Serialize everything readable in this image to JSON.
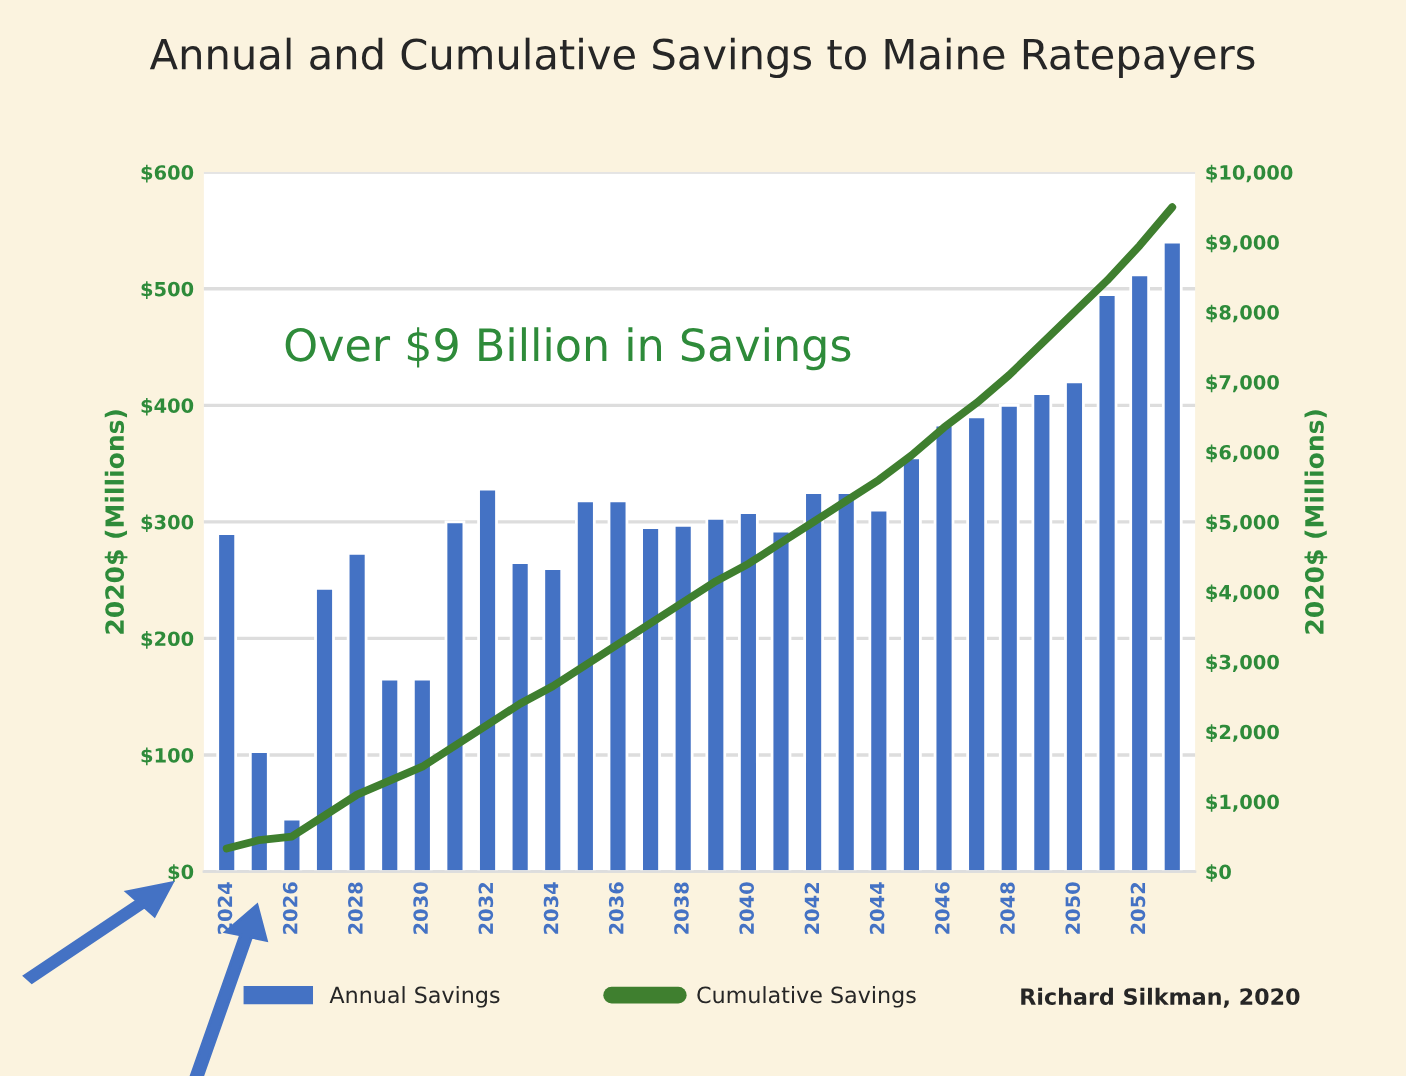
{
  "chart_data": {
    "type": "bar",
    "title": "Annual and Cumulative Savings to Maine Ratepayers",
    "categories": [
      "2024",
      null,
      "2026",
      null,
      "2028",
      null,
      "2030",
      null,
      "2032",
      null,
      "2034",
      null,
      "2036",
      null,
      "2038",
      null,
      "2040",
      null,
      "2042",
      null,
      "2044",
      null,
      "2046",
      null,
      "2048",
      null,
      "2050",
      null,
      "2052",
      null
    ],
    "series": [
      {
        "name": "Annual Savings",
        "color": "#4472c4",
        "values": [
          290,
          103,
          45,
          243,
          273,
          165,
          165,
          300,
          328,
          265,
          260,
          318,
          318,
          295,
          297,
          303,
          308,
          292,
          325,
          325,
          310,
          355,
          383,
          390,
          400,
          410,
          420,
          495,
          512,
          540
        ]
      },
      {
        "name": "Cumulative Savings",
        "type": "line",
        "axis": "y2",
        "color": "#3f7f2f",
        "values": [
          330,
          450,
          500,
          800,
          1100,
          1300,
          1500,
          1800,
          2100,
          2400,
          2650,
          2950,
          3250,
          3550,
          3850,
          4150,
          4400,
          4700,
          5000,
          5300,
          5600,
          5950,
          6350,
          6700,
          7100,
          7550,
          8000,
          8450,
          8950,
          9500
        ]
      }
    ],
    "ylabel": "2020$ (Millions)",
    "y2label": "2020$ (Millions)",
    "ylim": [
      0,
      600
    ],
    "yticks": [
      {
        "value": 0,
        "label": "$0"
      },
      {
        "value": 100,
        "label": "$100"
      },
      {
        "value": 200,
        "label": "$200"
      },
      {
        "value": 300,
        "label": "$300"
      },
      {
        "value": 400,
        "label": "$400"
      },
      {
        "value": 500,
        "label": "$500"
      },
      {
        "value": 600,
        "label": "$600"
      }
    ],
    "y2lim": [
      0,
      10000
    ],
    "y2ticks": [
      {
        "value": 0,
        "label": "$0"
      },
      {
        "value": 1000,
        "label": "$1,000"
      },
      {
        "value": 2000,
        "label": "$2,000"
      },
      {
        "value": 3000,
        "label": "$3,000"
      },
      {
        "value": 4000,
        "label": "$4,000"
      },
      {
        "value": 5000,
        "label": "$5,000"
      },
      {
        "value": 6000,
        "label": "$6,000"
      },
      {
        "value": 7000,
        "label": "$7,000"
      },
      {
        "value": 8000,
        "label": "$8,000"
      },
      {
        "value": 9000,
        "label": "$9,000"
      },
      {
        "value": 10000,
        "label": "$10,000"
      }
    ],
    "annotations": [
      "Over $9 Billion in Savings",
      "Richard Silkman, 2020"
    ],
    "grid": "y",
    "legend": "bottom"
  }
}
